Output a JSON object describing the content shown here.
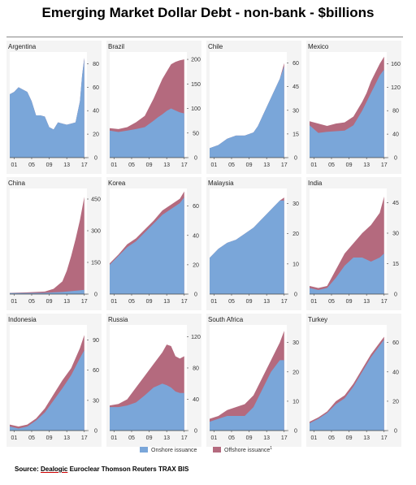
{
  "title": "Emerging Market Dollar Debt - non-bank - $billions",
  "source": {
    "prefix": "Source: ",
    "underlined": "Dealogic",
    "rest": " Euroclear Thomson Reuters TRAX BIS"
  },
  "colors": {
    "onshore": "#7aa6d9",
    "offshore": "#b46a7e",
    "axis": "#444444",
    "grid": "#cccccc"
  },
  "legend": [
    {
      "label": "Onshore issuance",
      "color": "#7aa6d9"
    },
    {
      "label": "Offshore issuance",
      "color": "#b46a7e",
      "superscript": "1"
    }
  ],
  "chart_data": [
    {
      "type": "area",
      "title": "Argentina",
      "x_ticks": [
        "01",
        "05",
        "09",
        "13",
        "17"
      ],
      "ylim": [
        0,
        90
      ],
      "y_ticks": [
        0,
        20,
        40,
        60,
        80
      ],
      "series": [
        {
          "name": "Onshore issuance",
          "x": [
            2000,
            2001,
            2002,
            2003,
            2004,
            2005,
            2006,
            2007,
            2008,
            2009,
            2010,
            2011,
            2012,
            2013,
            2014,
            2015,
            2016,
            2016.5,
            2017
          ],
          "values": [
            54,
            56,
            60,
            58,
            56,
            48,
            36,
            36,
            35,
            26,
            24,
            30,
            29,
            28,
            29,
            30,
            48,
            70,
            85
          ]
        },
        {
          "name": "Offshore issuance",
          "x": [
            2000,
            2017
          ],
          "values": [
            0,
            0
          ]
        }
      ]
    },
    {
      "type": "area",
      "title": "Brazil",
      "x_ticks": [
        "01",
        "05",
        "09",
        "13",
        "17"
      ],
      "ylim": [
        0,
        215
      ],
      "y_ticks": [
        0,
        50,
        100,
        150,
        200
      ],
      "series": [
        {
          "name": "Onshore issuance",
          "x": [
            2000,
            2002,
            2004,
            2006,
            2008,
            2010,
            2011,
            2012,
            2013,
            2014,
            2015,
            2016,
            2017
          ],
          "values": [
            55,
            52,
            55,
            58,
            62,
            75,
            82,
            88,
            95,
            100,
            96,
            92,
            90
          ]
        },
        {
          "name": "Offshore issuance",
          "x": [
            2000,
            2002,
            2004,
            2006,
            2008,
            2010,
            2011,
            2012,
            2013,
            2014,
            2015,
            2016,
            2017
          ],
          "values": [
            60,
            58,
            62,
            72,
            85,
            120,
            140,
            160,
            175,
            190,
            195,
            198,
            200
          ]
        }
      ]
    },
    {
      "type": "area",
      "title": "Chile",
      "x_ticks": [
        "01",
        "05",
        "09",
        "13",
        "17"
      ],
      "ylim": [
        0,
        67
      ],
      "y_ticks": [
        0,
        15,
        30,
        45,
        60
      ],
      "series": [
        {
          "name": "Onshore issuance",
          "x": [
            2000,
            2002,
            2004,
            2006,
            2008,
            2010,
            2011,
            2012,
            2013,
            2014,
            2015,
            2016,
            2017
          ],
          "values": [
            6,
            8,
            12,
            14,
            14,
            16,
            20,
            26,
            32,
            38,
            44,
            50,
            58
          ]
        },
        {
          "name": "Offshore issuance",
          "x": [
            2000,
            2002,
            2004,
            2006,
            2008,
            2010,
            2011,
            2012,
            2013,
            2014,
            2015,
            2016,
            2017
          ],
          "values": [
            6,
            8,
            12,
            14,
            14,
            16,
            20,
            26,
            32,
            38,
            44,
            50,
            60
          ]
        }
      ]
    },
    {
      "type": "area",
      "title": "Mexico",
      "x_ticks": [
        "01",
        "05",
        "09",
        "13",
        "17"
      ],
      "ylim": [
        0,
        180
      ],
      "y_ticks": [
        0,
        40,
        80,
        120,
        160
      ],
      "series": [
        {
          "name": "Onshore issuance",
          "x": [
            2000,
            2002,
            2004,
            2006,
            2008,
            2010,
            2012,
            2013,
            2014,
            2015,
            2016,
            2017
          ],
          "values": [
            55,
            42,
            44,
            45,
            46,
            55,
            80,
            95,
            110,
            125,
            140,
            150
          ]
        },
        {
          "name": "Offshore issuance",
          "x": [
            2000,
            2002,
            2004,
            2006,
            2008,
            2010,
            2012,
            2013,
            2014,
            2015,
            2016,
            2017
          ],
          "values": [
            62,
            58,
            54,
            58,
            60,
            70,
            95,
            110,
            130,
            145,
            160,
            172
          ]
        }
      ]
    },
    {
      "type": "area",
      "title": "China",
      "x_ticks": [
        "01",
        "05",
        "09",
        "13",
        "17"
      ],
      "ylim": [
        0,
        500
      ],
      "y_ticks": [
        0,
        150,
        300,
        450
      ],
      "series": [
        {
          "name": "Onshore issuance",
          "x": [
            2000,
            2004,
            2008,
            2010,
            2012,
            2013,
            2014,
            2015,
            2016,
            2017
          ],
          "values": [
            5,
            5,
            6,
            8,
            10,
            12,
            14,
            16,
            18,
            20
          ]
        },
        {
          "name": "Offshore issuance",
          "x": [
            2000,
            2004,
            2008,
            2010,
            2012,
            2013,
            2014,
            2015,
            2016,
            2017
          ],
          "values": [
            6,
            8,
            12,
            25,
            60,
            110,
            180,
            260,
            350,
            460
          ]
        }
      ]
    },
    {
      "type": "area",
      "title": "Korea",
      "x_ticks": [
        "01",
        "05",
        "09",
        "13",
        "17"
      ],
      "ylim": [
        0,
        72
      ],
      "y_ticks": [
        0,
        20,
        40,
        60
      ],
      "series": [
        {
          "name": "Onshore issuance",
          "x": [
            2000,
            2002,
            2004,
            2006,
            2008,
            2010,
            2012,
            2014,
            2016,
            2017
          ],
          "values": [
            20,
            26,
            32,
            36,
            42,
            48,
            54,
            58,
            62,
            66
          ]
        },
        {
          "name": "Offshore issuance",
          "x": [
            2000,
            2002,
            2004,
            2006,
            2008,
            2010,
            2012,
            2014,
            2016,
            2017
          ],
          "values": [
            21,
            27,
            34,
            38,
            44,
            50,
            57,
            61,
            65,
            70
          ]
        }
      ]
    },
    {
      "type": "area",
      "title": "Malaysia",
      "x_ticks": [
        "01",
        "05",
        "09",
        "13",
        "17"
      ],
      "ylim": [
        0,
        35
      ],
      "y_ticks": [
        0,
        10,
        20,
        30
      ],
      "series": [
        {
          "name": "Onshore issuance",
          "x": [
            2000,
            2002,
            2004,
            2006,
            2008,
            2010,
            2012,
            2014,
            2016,
            2017
          ],
          "values": [
            12,
            15,
            17,
            18,
            20,
            22,
            25,
            28,
            31,
            31
          ]
        },
        {
          "name": "Offshore issuance",
          "x": [
            2000,
            2002,
            2004,
            2006,
            2008,
            2010,
            2012,
            2014,
            2016,
            2017
          ],
          "values": [
            12,
            15,
            17,
            18,
            20,
            22,
            25,
            28,
            31,
            32
          ]
        }
      ]
    },
    {
      "type": "area",
      "title": "India",
      "x_ticks": [
        "01",
        "05",
        "09",
        "13",
        "17"
      ],
      "ylim": [
        0,
        52
      ],
      "y_ticks": [
        0,
        15,
        30,
        45
      ],
      "series": [
        {
          "name": "Onshore issuance",
          "x": [
            2000,
            2002,
            2004,
            2006,
            2008,
            2010,
            2012,
            2014,
            2016,
            2017
          ],
          "values": [
            3,
            2,
            3,
            8,
            14,
            18,
            18,
            16,
            18,
            20
          ]
        },
        {
          "name": "Offshore issuance",
          "x": [
            2000,
            2002,
            2004,
            2006,
            2008,
            2010,
            2012,
            2014,
            2016,
            2017
          ],
          "values": [
            4,
            3,
            4,
            12,
            20,
            25,
            30,
            34,
            40,
            48
          ]
        }
      ]
    },
    {
      "type": "area",
      "title": "Indonesia",
      "x_ticks": [
        "01",
        "05",
        "09",
        "13",
        "17"
      ],
      "ylim": [
        0,
        105
      ],
      "y_ticks": [
        0,
        30,
        60,
        90
      ],
      "series": [
        {
          "name": "Onshore issuance",
          "x": [
            2000,
            2002,
            2004,
            2006,
            2008,
            2010,
            2012,
            2014,
            2016,
            2017
          ],
          "values": [
            4,
            2,
            4,
            10,
            18,
            30,
            42,
            55,
            72,
            80
          ]
        },
        {
          "name": "Offshore issuance",
          "x": [
            2000,
            2002,
            2004,
            2006,
            2008,
            2010,
            2012,
            2014,
            2016,
            2017
          ],
          "values": [
            6,
            4,
            6,
            12,
            22,
            36,
            50,
            62,
            82,
            95
          ]
        }
      ]
    },
    {
      "type": "area",
      "title": "Russia",
      "x_ticks": [
        "01",
        "05",
        "09",
        "13",
        "17"
      ],
      "ylim": [
        0,
        135
      ],
      "y_ticks": [
        0,
        40,
        80,
        120
      ],
      "series": [
        {
          "name": "Onshore issuance",
          "x": [
            2000,
            2002,
            2004,
            2006,
            2008,
            2010,
            2012,
            2013,
            2014,
            2015,
            2016,
            2017
          ],
          "values": [
            30,
            30,
            32,
            36,
            45,
            55,
            60,
            58,
            55,
            50,
            48,
            48
          ]
        },
        {
          "name": "Offshore issuance",
          "x": [
            2000,
            2002,
            2004,
            2006,
            2008,
            2010,
            2012,
            2013,
            2014,
            2015,
            2016,
            2017
          ],
          "values": [
            32,
            34,
            40,
            55,
            70,
            85,
            100,
            110,
            108,
            95,
            92,
            95
          ]
        }
      ]
    },
    {
      "type": "area",
      "title": "South Africa",
      "x_ticks": [
        "01",
        "05",
        "09",
        "13",
        "17"
      ],
      "ylim": [
        0,
        36
      ],
      "y_ticks": [
        0,
        10,
        20,
        30
      ],
      "series": [
        {
          "name": "Onshore issuance",
          "x": [
            2000,
            2002,
            2004,
            2006,
            2008,
            2010,
            2012,
            2014,
            2016,
            2017
          ],
          "values": [
            3,
            4,
            5,
            5,
            5,
            8,
            14,
            20,
            24,
            24
          ]
        },
        {
          "name": "Offshore issuance",
          "x": [
            2000,
            2002,
            2004,
            2006,
            2008,
            2010,
            2012,
            2014,
            2016,
            2017
          ],
          "values": [
            4,
            5,
            7,
            8,
            9,
            12,
            18,
            24,
            30,
            34
          ]
        }
      ]
    },
    {
      "type": "area",
      "title": "Turkey",
      "x_ticks": [
        "01",
        "05",
        "09",
        "13",
        "17"
      ],
      "ylim": [
        0,
        72
      ],
      "y_ticks": [
        0,
        20,
        40,
        60
      ],
      "series": [
        {
          "name": "Onshore issuance",
          "x": [
            2000,
            2002,
            2004,
            2006,
            2008,
            2010,
            2012,
            2014,
            2016,
            2017
          ],
          "values": [
            5,
            8,
            12,
            18,
            22,
            30,
            40,
            50,
            58,
            62
          ]
        },
        {
          "name": "Offshore issuance",
          "x": [
            2000,
            2002,
            2004,
            2006,
            2008,
            2010,
            2012,
            2014,
            2016,
            2017
          ],
          "values": [
            6,
            9,
            13,
            20,
            24,
            32,
            42,
            52,
            60,
            64
          ]
        }
      ]
    }
  ]
}
